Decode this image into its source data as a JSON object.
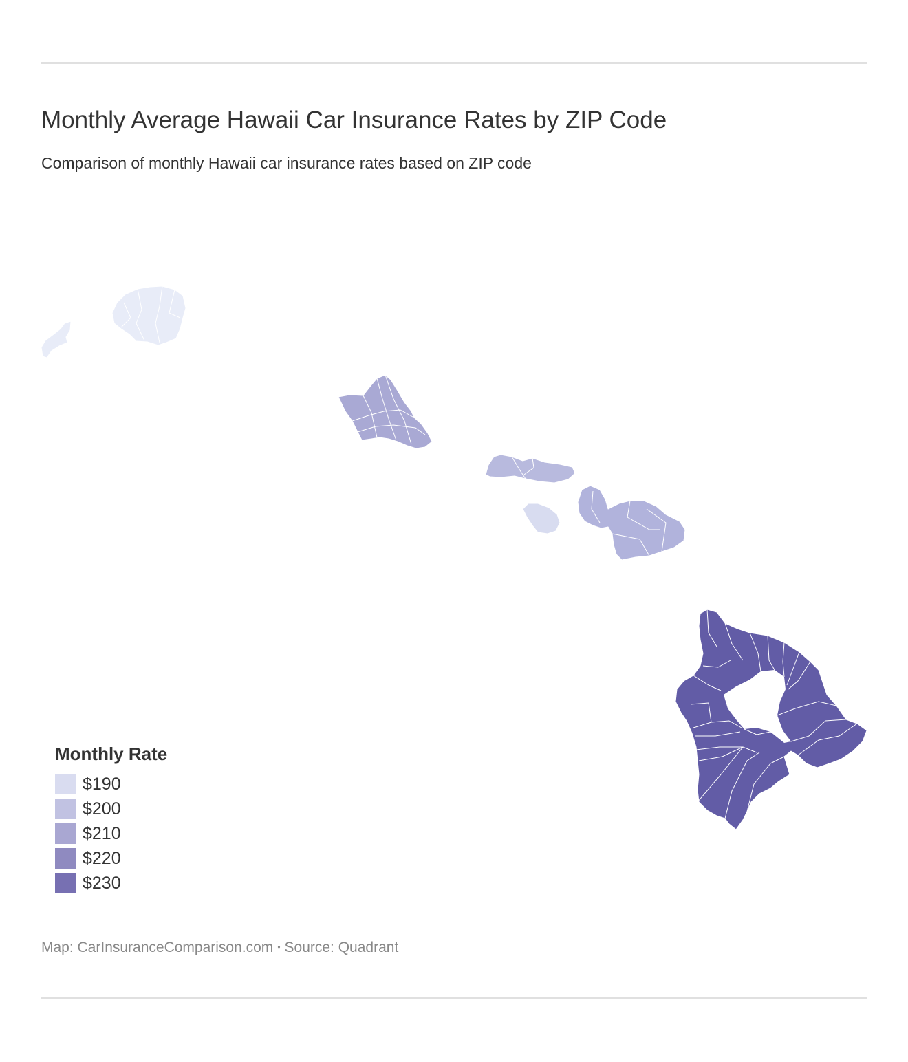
{
  "header": {
    "title": "Monthly Average Hawaii Car Insurance Rates by ZIP Code",
    "subtitle": "Comparison of monthly Hawaii car insurance rates based on ZIP code"
  },
  "map": {
    "regions": [
      {
        "name": "Niihau",
        "color": "#e8ecf8"
      },
      {
        "name": "Kauai",
        "color": "#e8ecf8"
      },
      {
        "name": "Oahu",
        "color": "#a9a9d4"
      },
      {
        "name": "Molokai",
        "color": "#b8bade"
      },
      {
        "name": "Lanai",
        "color": "#d8dcf0"
      },
      {
        "name": "Maui",
        "color": "#b1b3dc"
      },
      {
        "name": "Hawaii",
        "color": "#625ca6"
      }
    ]
  },
  "legend": {
    "title": "Monthly Rate",
    "items": [
      {
        "label": "$190",
        "color": "#d9dcf0"
      },
      {
        "label": "$200",
        "color": "#c1c2e2"
      },
      {
        "label": "$210",
        "color": "#a9a7d2"
      },
      {
        "label": "$220",
        "color": "#8f8ac0"
      },
      {
        "label": "$230",
        "color": "#7770b2"
      }
    ]
  },
  "footer": {
    "map_credit": "Map: CarInsuranceComparison.com",
    "separator": "•",
    "source": "Source: Quadrant"
  }
}
